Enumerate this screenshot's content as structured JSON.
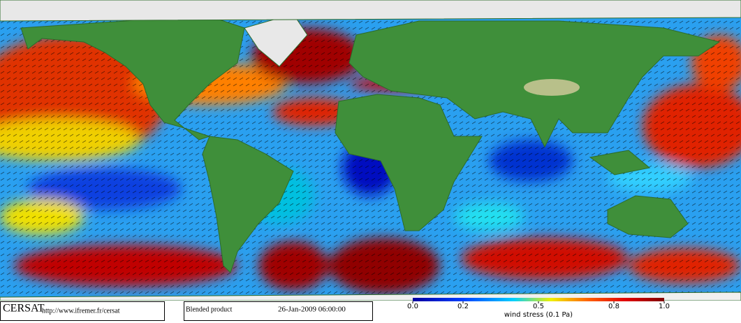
{
  "header": {
    "logo": "CERSAT",
    "url": "http://www.ifremer.fr/cersat"
  },
  "product": {
    "name": "Blended product",
    "date": "26-Jan-2009 06:00:00"
  },
  "colorbar": {
    "label": "wind stress (0.1 Pa)",
    "ticks": [
      {
        "value": 0,
        "label": "0.0"
      },
      0.2,
      0.5,
      0.8,
      {
        "value": 1,
        "label": "1.0"
      }
    ]
  }
}
